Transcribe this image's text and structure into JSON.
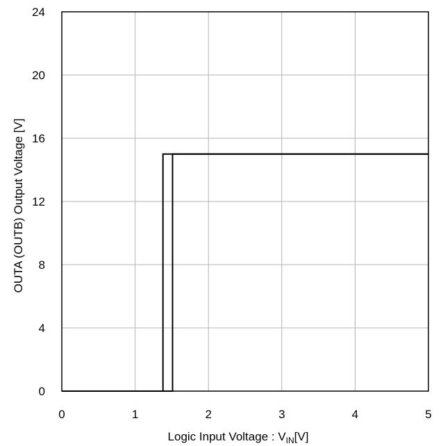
{
  "chart_data": {
    "type": "line",
    "title": "",
    "xlabel": "Logic Input Voltage : V",
    "xlabel_sub": "IN",
    "xlabel_suffix": "[V]",
    "ylabel": "OUTA (OUTB) Output Voltage [V]",
    "xlim": [
      0,
      5
    ],
    "ylim": [
      0,
      24
    ],
    "xticks": [
      "0",
      "1",
      "2",
      "3",
      "4",
      "5"
    ],
    "yticks": [
      "0",
      "4",
      "8",
      "12",
      "16",
      "20",
      "24"
    ],
    "grid": true,
    "series": [
      {
        "x": [
          0,
          1.38,
          1.38,
          5
        ],
        "y": [
          0,
          0,
          15,
          15
        ]
      },
      {
        "x": [
          0,
          1.51,
          1.51,
          5
        ],
        "y": [
          0,
          0,
          15,
          15
        ]
      }
    ]
  }
}
